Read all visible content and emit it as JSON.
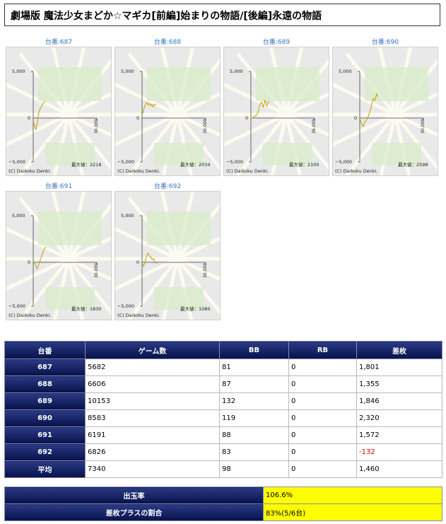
{
  "title": "劇場版 魔法少女まどか☆マギカ[前編]始まりの物語/[後編]永遠の物語",
  "graph_common": {
    "y_top": "5,000",
    "y_zero": "0",
    "y_bottom": "−5,000",
    "copyright": "(C) Daikoku Denki.",
    "max_prefix": "最大値："
  },
  "machines": [
    {
      "link": "台番:687",
      "max": "2218",
      "x_end": "30,000",
      "points": [
        [
          0,
          -300
        ],
        [
          700,
          -900
        ],
        [
          1300,
          -1200
        ],
        [
          1900,
          -400
        ],
        [
          2600,
          500
        ],
        [
          3200,
          1000
        ],
        [
          3800,
          1200
        ],
        [
          4400,
          1500
        ],
        [
          5000,
          1700
        ],
        [
          5682,
          1801
        ]
      ]
    },
    {
      "link": "台番:688",
      "max": "2034",
      "x_end": "30,000",
      "points": [
        [
          0,
          300
        ],
        [
          500,
          700
        ],
        [
          1100,
          1200
        ],
        [
          1600,
          1500
        ],
        [
          2200,
          1700
        ],
        [
          2800,
          1400
        ],
        [
          3400,
          1600
        ],
        [
          4000,
          1300
        ],
        [
          4600,
          1500
        ],
        [
          5200,
          1200
        ],
        [
          5800,
          1500
        ],
        [
          6606,
          1355
        ]
      ]
    },
    {
      "link": "台番:689",
      "max": "2100",
      "x_end": "36,000",
      "points": [
        [
          0,
          0
        ],
        [
          1000,
          0
        ],
        [
          2000,
          200
        ],
        [
          3000,
          300
        ],
        [
          4000,
          600
        ],
        [
          5000,
          1400
        ],
        [
          6000,
          1700
        ],
        [
          7000,
          1200
        ],
        [
          8000,
          1900
        ],
        [
          9000,
          1300
        ],
        [
          10153,
          1846
        ]
      ]
    },
    {
      "link": "台番:690",
      "max": "2598",
      "x_end": "30,000",
      "points": [
        [
          0,
          0
        ],
        [
          800,
          -600
        ],
        [
          1600,
          -900
        ],
        [
          2400,
          -400
        ],
        [
          3200,
          -200
        ],
        [
          4000,
          200
        ],
        [
          4800,
          700
        ],
        [
          5600,
          1400
        ],
        [
          6400,
          2100
        ],
        [
          7200,
          1900
        ],
        [
          8000,
          2600
        ],
        [
          8583,
          2320
        ]
      ]
    },
    {
      "link": "台番:691",
      "max": "1830",
      "x_end": "30,000",
      "points": [
        [
          0,
          0
        ],
        [
          1000,
          -200
        ],
        [
          1800,
          -700
        ],
        [
          2600,
          -300
        ],
        [
          3400,
          300
        ],
        [
          4200,
          800
        ],
        [
          5000,
          1300
        ],
        [
          5600,
          1600
        ],
        [
          6191,
          1572
        ]
      ]
    },
    {
      "link": "台番:692",
      "max": "1080",
      "x_end": "30,000",
      "points": [
        [
          0,
          -100
        ],
        [
          700,
          -400
        ],
        [
          1400,
          0
        ],
        [
          2100,
          700
        ],
        [
          2800,
          1000
        ],
        [
          3400,
          700
        ],
        [
          4000,
          600
        ],
        [
          4700,
          300
        ],
        [
          5400,
          400
        ],
        [
          6100,
          0
        ],
        [
          6826,
          -132
        ]
      ]
    }
  ],
  "table": {
    "headers": [
      "台番",
      "ゲーム数",
      "BB",
      "RB",
      "差枚"
    ],
    "rows": [
      {
        "no": "687",
        "games": "5682",
        "bb": "81",
        "rb": "0",
        "diff": "1,801"
      },
      {
        "no": "688",
        "games": "6606",
        "bb": "87",
        "rb": "0",
        "diff": "1,355"
      },
      {
        "no": "689",
        "games": "10153",
        "bb": "132",
        "rb": "0",
        "diff": "1,846"
      },
      {
        "no": "690",
        "games": "8583",
        "bb": "119",
        "rb": "0",
        "diff": "2,320"
      },
      {
        "no": "691",
        "games": "6191",
        "bb": "88",
        "rb": "0",
        "diff": "1,572"
      },
      {
        "no": "692",
        "games": "6826",
        "bb": "83",
        "rb": "0",
        "diff": "-132"
      },
      {
        "no": "平均",
        "games": "7340",
        "bb": "98",
        "rb": "0",
        "diff": "1,460"
      }
    ]
  },
  "summary": [
    {
      "label": "出玉率",
      "value": "106.6%"
    },
    {
      "label": "差枚プラスの割合",
      "value": "83%(5/6台)"
    }
  ],
  "colors": {
    "line": "#c8a000",
    "header_bg": "#0a1a5c",
    "highlight": "#ffff00",
    "negative": "#dd0000",
    "link": "#3a73c4"
  }
}
